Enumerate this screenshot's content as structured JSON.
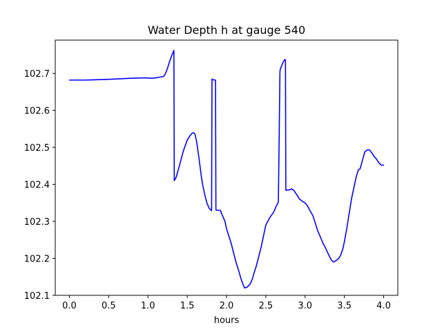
{
  "chart_data": {
    "type": "line",
    "title": "Water Depth h at gauge 540",
    "xlabel": "hours",
    "ylabel": "",
    "xlim": [
      -0.18,
      4.18
    ],
    "ylim": [
      102.1,
      102.79
    ],
    "xticks": [
      0.0,
      0.5,
      1.0,
      1.5,
      2.0,
      2.5,
      3.0,
      3.5,
      4.0
    ],
    "xtick_labels": [
      "0.0",
      "0.5",
      "1.0",
      "1.5",
      "2.0",
      "2.5",
      "3.0",
      "3.5",
      "4.0"
    ],
    "yticks": [
      102.1,
      102.2,
      102.3,
      102.4,
      102.5,
      102.6,
      102.7
    ],
    "ytick_labels": [
      "102.1",
      "102.2",
      "102.3",
      "102.4",
      "102.5",
      "102.6",
      "102.7"
    ],
    "grid": false,
    "legend": "none",
    "series": [
      {
        "color": "#0000ff",
        "x": [
          0.0,
          0.2,
          0.5,
          0.8,
          0.95,
          1.05,
          1.1,
          1.15,
          1.2,
          1.22,
          1.25,
          1.28,
          1.31,
          1.33,
          1.335,
          1.36,
          1.4,
          1.45,
          1.5,
          1.53,
          1.56,
          1.58,
          1.6,
          1.62,
          1.65,
          1.68,
          1.7,
          1.72,
          1.75,
          1.78,
          1.81,
          1.815,
          1.82,
          1.86,
          1.865,
          1.87,
          1.9,
          1.92,
          1.95,
          1.98,
          2.0,
          2.03,
          2.06,
          2.09,
          2.12,
          2.15,
          2.18,
          2.2,
          2.23,
          2.26,
          2.3,
          2.33,
          2.35,
          2.38,
          2.41,
          2.44,
          2.47,
          2.5,
          2.55,
          2.6,
          2.63,
          2.66,
          2.68,
          2.683,
          2.7,
          2.72,
          2.74,
          2.75,
          2.755,
          2.78,
          2.8,
          2.83,
          2.86,
          2.9,
          2.93,
          2.96,
          3.0,
          3.03,
          3.06,
          3.1,
          3.13,
          3.16,
          3.2,
          3.23,
          3.26,
          3.3,
          3.33,
          3.36,
          3.38,
          3.4,
          3.42,
          3.45,
          3.48,
          3.5,
          3.53,
          3.56,
          3.59,
          3.62,
          3.65,
          3.68,
          3.7,
          3.73,
          3.76,
          3.79,
          3.82,
          3.85,
          3.88,
          3.91,
          3.94,
          3.97,
          4.0
        ],
        "y": [
          102.682,
          102.682,
          102.684,
          102.687,
          102.688,
          102.687,
          102.688,
          102.69,
          102.692,
          102.698,
          102.715,
          102.735,
          102.752,
          102.762,
          102.41,
          102.42,
          102.45,
          102.49,
          102.52,
          102.53,
          102.538,
          102.54,
          102.535,
          102.515,
          102.47,
          102.42,
          102.395,
          102.375,
          102.35,
          102.335,
          102.329,
          102.685,
          102.683,
          102.682,
          102.332,
          102.33,
          102.33,
          102.33,
          102.315,
          102.3,
          102.28,
          102.26,
          102.24,
          102.215,
          102.19,
          102.17,
          102.148,
          102.135,
          102.12,
          102.122,
          102.13,
          102.145,
          102.16,
          102.18,
          102.205,
          102.23,
          102.26,
          102.29,
          102.31,
          102.325,
          102.34,
          102.352,
          102.705,
          102.71,
          102.72,
          102.73,
          102.737,
          102.737,
          102.384,
          102.385,
          102.385,
          102.388,
          102.383,
          102.37,
          102.36,
          102.355,
          102.35,
          102.342,
          102.33,
          102.315,
          102.295,
          102.275,
          102.255,
          102.24,
          102.228,
          102.21,
          102.197,
          102.19,
          102.192,
          102.195,
          102.198,
          102.207,
          102.225,
          102.245,
          102.28,
          102.32,
          102.36,
          102.39,
          102.42,
          102.44,
          102.442,
          102.465,
          102.488,
          102.493,
          102.493,
          102.485,
          102.475,
          102.468,
          102.458,
          102.452,
          102.452
        ]
      }
    ]
  }
}
